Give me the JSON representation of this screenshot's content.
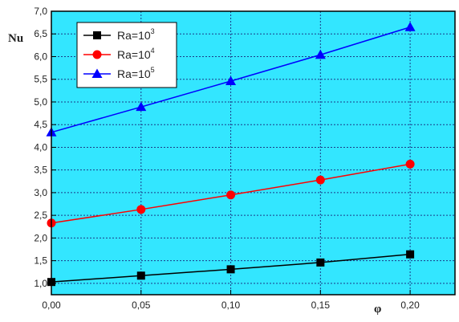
{
  "chart_data": {
    "type": "line",
    "title": "",
    "xlabel": "φ",
    "ylabel": "Nu",
    "x": [
      0.0,
      0.05,
      0.1,
      0.15,
      0.2
    ],
    "xlim": [
      0.0,
      0.225
    ],
    "ylim": [
      0.75,
      7.0
    ],
    "x_ticks": [
      "0,00",
      "0,05",
      "0,10",
      "0,15",
      "0,20"
    ],
    "y_ticks": [
      "1,0",
      "1,5",
      "2,0",
      "2,5",
      "3,0",
      "3,5",
      "4,0",
      "4,5",
      "5,0",
      "5,5",
      "6,0",
      "6,5",
      "7,0"
    ],
    "grid": true,
    "background_color": "#33e6ff",
    "legend_position": "top-left",
    "series": [
      {
        "label_base": "Ra=10",
        "label_exp": "3",
        "color": "#000000",
        "marker": "square",
        "values": [
          1.03,
          1.17,
          1.31,
          1.46,
          1.64
        ]
      },
      {
        "label_base": "Ra=10",
        "label_exp": "4",
        "color": "#ff0000",
        "marker": "circle",
        "values": [
          2.33,
          2.63,
          2.95,
          3.28,
          3.63
        ]
      },
      {
        "label_base": "Ra=10",
        "label_exp": "5",
        "color": "#0000ff",
        "marker": "triangle",
        "values": [
          4.33,
          4.89,
          5.46,
          6.04,
          6.65
        ]
      }
    ]
  }
}
